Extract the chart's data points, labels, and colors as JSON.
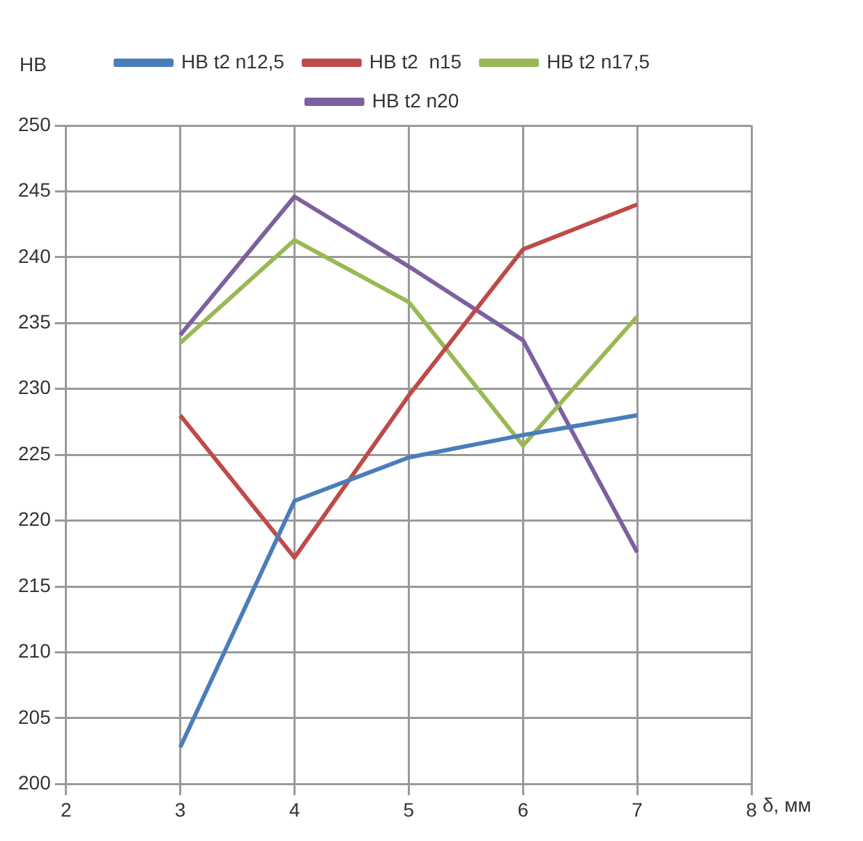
{
  "chart_data": {
    "type": "line",
    "ylabel": "HB",
    "xlabel": "δ, мм",
    "x": [
      3,
      4,
      5,
      6,
      7
    ],
    "series": [
      {
        "name": "HB t2 n12,5",
        "color": "#4a7ebb",
        "values": [
          202.8,
          221.5,
          224.8,
          226.5,
          228
        ]
      },
      {
        "name": "HB t2  n15",
        "color": "#be4b48",
        "values": [
          228,
          217.2,
          229.5,
          240.6,
          244
        ]
      },
      {
        "name": "HB t2 n17,5",
        "color": "#98b954",
        "values": [
          233.5,
          241.3,
          236.6,
          225.7,
          235.5
        ]
      },
      {
        "name": "HB t2 n20",
        "color": "#7d60a0",
        "values": [
          234.1,
          244.6,
          239.3,
          233.7,
          217.6
        ]
      }
    ],
    "xlim": [
      2,
      8
    ],
    "xticks": [
      2,
      3,
      4,
      5,
      6,
      7,
      8
    ],
    "ylim": [
      200,
      250
    ],
    "yticks": [
      200,
      205,
      210,
      215,
      220,
      225,
      230,
      235,
      240,
      245,
      250
    ],
    "grid": true,
    "legend": "top",
    "marker": "none",
    "line_style": "solid"
  }
}
